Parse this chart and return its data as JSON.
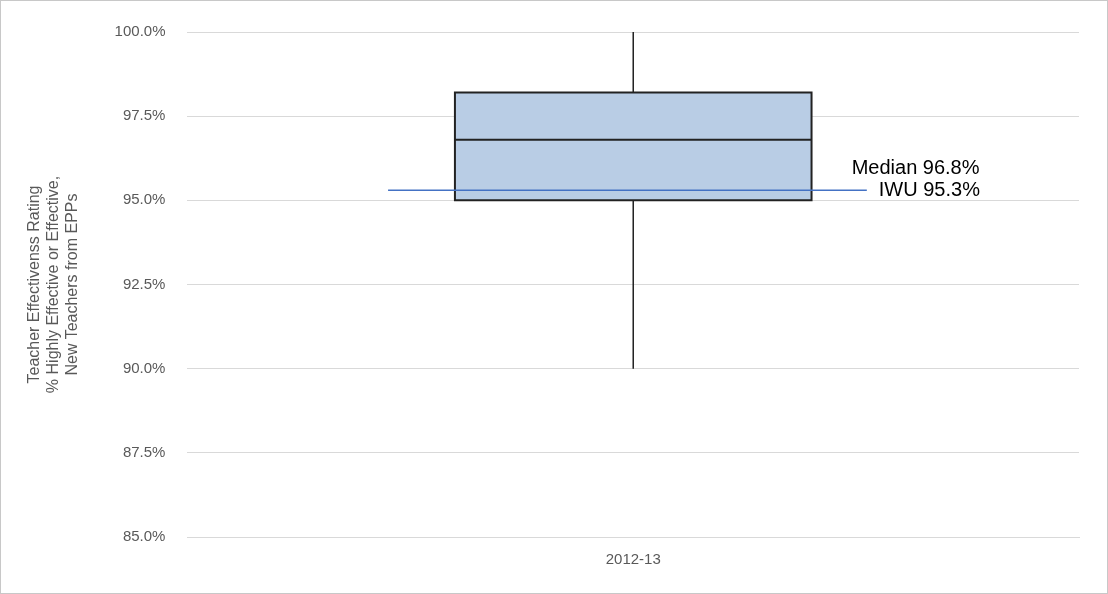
{
  "chart_data": {
    "type": "box",
    "ylabel": "Teacher Effectivenss Rating\n% Highly Effective or Effective,\nNew Teachers from EPPs",
    "categories": [
      "2012-13"
    ],
    "boxes": [
      {
        "low": 90.0,
        "q1": 95.0,
        "median": 96.8,
        "q3": 98.2,
        "high": 100.0
      }
    ],
    "color": "#b9cde5",
    "ylim": [
      85,
      100
    ],
    "yticks": [
      {
        "value": 85,
        "label": "85.0%"
      },
      {
        "value": 87.5,
        "label": "87.5%"
      },
      {
        "value": 90,
        "label": "90.0%"
      },
      {
        "value": 92.5,
        "label": "92.5%"
      },
      {
        "value": 95,
        "label": "95.0%"
      },
      {
        "value": 97.5,
        "label": "97.5%"
      },
      {
        "value": 100,
        "label": "100.0%"
      }
    ],
    "grid": "y",
    "ref_lines": [
      {
        "axis": "y",
        "value": 95.3,
        "label": "IWU 95.3%",
        "color": "#4472c4"
      }
    ],
    "annotations": [
      "Median 96.8%"
    ]
  }
}
